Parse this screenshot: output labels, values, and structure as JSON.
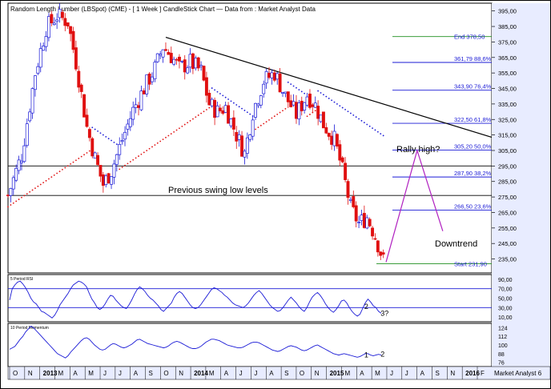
{
  "title": "Random Length Lumber (LBSpot) (CME) -  [ 1 Week ] CandleStick Chart — Data from : Market Analyst Data",
  "watermark": "Market Analyst 6",
  "colors": {
    "up_candle": "#1a1ad6",
    "down_candle": "#e01010",
    "sar_up": "#e01010",
    "sar_down": "#1a1ad6",
    "fib_line": "#1a1ad6",
    "start_end_line": "#1f8f1f",
    "trendline": "#000000",
    "projection": "#b020c0",
    "indicator_line": "#1a1ad6",
    "axis_bg": "#e8ecff"
  },
  "chart_data": [
    {
      "type": "candlestick",
      "panel": "price",
      "title": "Random Length Lumber (LBSpot) (CME) -  [ 1 Week ] CandleStick Chart — Data from : Market Analyst Data",
      "ylim": [
        226,
        400
      ],
      "y_ticks": [
        "395,00",
        "385,00",
        "375,00",
        "365,00",
        "355,00",
        "345,00",
        "335,00",
        "325,00",
        "315,00",
        "305,00",
        "295,00",
        "285,00",
        "275,00",
        "265,00",
        "255,00",
        "245,00",
        "235,00"
      ],
      "x_labels": [
        "O",
        "N",
        "2013",
        "M",
        "A",
        "M",
        "J",
        "J",
        "A",
        "S",
        "O",
        "N",
        "2014",
        "M",
        "A",
        "J",
        "J",
        "A",
        "S",
        "O",
        "N",
        "2015",
        "M",
        "A",
        "M",
        "J",
        "J",
        "A",
        "S",
        "N",
        "2016",
        "F"
      ],
      "x_range": [
        "2012-10",
        "2016-02"
      ],
      "path_keypoints": [
        {
          "date": "2012-10-01",
          "close": 276
        },
        {
          "date": "2012-11-05",
          "close": 302
        },
        {
          "date": "2012-12-10",
          "close": 355
        },
        {
          "date": "2013-01-07",
          "close": 384
        },
        {
          "date": "2013-02-04",
          "close": 392
        },
        {
          "date": "2013-03-04",
          "close": 388
        },
        {
          "date": "2013-03-25",
          "close": 362
        },
        {
          "date": "2013-04-22",
          "close": 320
        },
        {
          "date": "2013-05-13",
          "close": 300
        },
        {
          "date": "2013-06-03",
          "close": 283
        },
        {
          "date": "2013-06-24",
          "close": 292
        },
        {
          "date": "2013-07-22",
          "close": 312
        },
        {
          "date": "2013-08-19",
          "close": 331
        },
        {
          "date": "2013-09-16",
          "close": 345
        },
        {
          "date": "2013-10-14",
          "close": 358
        },
        {
          "date": "2013-11-04",
          "close": 372
        },
        {
          "date": "2013-11-25",
          "close": 366
        },
        {
          "date": "2013-12-16",
          "close": 358
        },
        {
          "date": "2014-01-13",
          "close": 362
        },
        {
          "date": "2014-02-10",
          "close": 356
        },
        {
          "date": "2014-03-03",
          "close": 335
        },
        {
          "date": "2014-03-24",
          "close": 330
        },
        {
          "date": "2014-04-14",
          "close": 333
        },
        {
          "date": "2014-05-12",
          "close": 315
        },
        {
          "date": "2014-06-02",
          "close": 303
        },
        {
          "date": "2014-06-23",
          "close": 330
        },
        {
          "date": "2014-07-21",
          "close": 350
        },
        {
          "date": "2014-08-18",
          "close": 355
        },
        {
          "date": "2014-09-15",
          "close": 340
        },
        {
          "date": "2014-10-13",
          "close": 328
        },
        {
          "date": "2014-11-10",
          "close": 341
        },
        {
          "date": "2014-12-01",
          "close": 334
        },
        {
          "date": "2014-12-22",
          "close": 322
        },
        {
          "date": "2015-01-19",
          "close": 312
        },
        {
          "date": "2015-02-09",
          "close": 292
        },
        {
          "date": "2015-03-02",
          "close": 268
        },
        {
          "date": "2015-03-23",
          "close": 258
        },
        {
          "date": "2015-04-13",
          "close": 262
        },
        {
          "date": "2015-05-04",
          "close": 250
        },
        {
          "date": "2015-05-25",
          "close": 234
        }
      ],
      "annotations": {
        "start": {
          "label": "Start 231,90",
          "price": 231.9
        },
        "end": {
          "label": "End 378,50",
          "price": 378.5
        },
        "fib_levels": [
          {
            "label": "361,79 88,6%",
            "price": 361.79
          },
          {
            "label": "343,90 76,4%",
            "price": 343.9
          },
          {
            "label": "322,50 61,8%",
            "price": 322.5
          },
          {
            "label": "305,20 50,0%",
            "price": 305.2
          },
          {
            "label": "287,90 38,2%",
            "price": 287.9
          },
          {
            "label": "266,50 23,6%",
            "price": 266.5
          }
        ],
        "swing_low_levels": [
          295,
          276
        ],
        "swing_low_label": "Previous swing low levels",
        "trendline": [
          {
            "date": "2013-11-11",
            "price": 378
          },
          {
            "date": "2016-02-20",
            "price": 304
          }
        ],
        "rally_label": "Rally high?",
        "downtrend_label": "Downtrend",
        "projection": [
          {
            "date": "2015-06-01",
            "price": 233
          },
          {
            "date": "2015-08-20",
            "price": 305
          },
          {
            "date": "2015-10-25",
            "price": 253
          }
        ]
      }
    },
    {
      "type": "line",
      "panel": "rsi",
      "title": "5 Period RSI",
      "y_ticks": [
        "90,00",
        "70,00",
        "50,00",
        "30,00",
        "10,00"
      ],
      "ylim": [
        0,
        100
      ],
      "reference_lines": [
        70,
        30
      ],
      "annotations": [
        {
          "label": "2",
          "date": "2015-04-06",
          "value": 32
        },
        {
          "label": "3?",
          "date": "2015-05-18",
          "value": 18
        }
      ],
      "values": [
        46,
        70,
        78,
        84,
        86,
        80,
        72,
        62,
        50,
        42,
        38,
        30,
        22,
        20,
        16,
        12,
        8,
        14,
        24,
        36,
        44,
        52,
        60,
        70,
        78,
        82,
        86,
        84,
        80,
        74,
        60,
        48,
        40,
        30,
        26,
        30,
        38,
        48,
        56,
        54,
        46,
        40,
        34,
        30,
        28,
        36,
        46,
        58,
        68,
        74,
        70,
        64,
        56,
        50,
        46,
        40,
        34,
        26,
        22,
        28,
        34,
        40,
        52,
        60,
        64,
        60,
        52,
        44,
        36,
        30,
        28,
        30,
        36,
        44,
        52,
        60,
        68,
        72,
        70,
        66,
        62,
        56,
        52,
        46,
        40,
        36,
        34,
        32,
        30,
        34,
        40,
        48,
        56,
        62,
        66,
        60,
        52,
        44,
        36,
        30,
        26,
        22,
        24,
        30,
        38,
        46,
        52,
        46,
        40,
        32,
        26,
        22,
        30,
        42,
        52,
        58,
        62,
        56,
        48,
        38,
        30,
        24,
        20,
        26,
        34,
        44,
        46,
        40,
        30,
        22,
        16,
        12,
        16,
        28,
        40,
        48,
        42,
        34,
        30,
        22,
        18
      ]
    },
    {
      "type": "line",
      "panel": "momentum",
      "title": "10 Period Momentum",
      "y_ticks": [
        "124",
        "112",
        "100",
        "88",
        "76"
      ],
      "ylim": [
        70,
        130
      ],
      "annotations": [
        {
          "label": "1",
          "date": "2015-04-06",
          "value": 86
        },
        {
          "label": "2",
          "date": "2015-05-18",
          "value": 87
        }
      ],
      "values": [
        94,
        96,
        98,
        103,
        108,
        112,
        118,
        122,
        126,
        124,
        120,
        116,
        112,
        108,
        104,
        100,
        96,
        92,
        88,
        86,
        84,
        82,
        85,
        90,
        94,
        98,
        102,
        106,
        109,
        110,
        108,
        104,
        100,
        97,
        94,
        93,
        94,
        97,
        100,
        102,
        101,
        99,
        97,
        96,
        97,
        99,
        101,
        104,
        107,
        108,
        106,
        104,
        102,
        101,
        100,
        99,
        98,
        97,
        96,
        97,
        99,
        102,
        104,
        105,
        104,
        102,
        100,
        98,
        96,
        95,
        95,
        96,
        98,
        101,
        104,
        106,
        108,
        108,
        107,
        106,
        104,
        102,
        100,
        99,
        98,
        97,
        96,
        96,
        97,
        99,
        101,
        103,
        104,
        104,
        103,
        101,
        99,
        97,
        95,
        93,
        92,
        91,
        92,
        94,
        96,
        98,
        99,
        98,
        97,
        95,
        93,
        92,
        93,
        95,
        97,
        99,
        100,
        98,
        96,
        94,
        92,
        90,
        88,
        87,
        86,
        87,
        88,
        87,
        86,
        85,
        84,
        83,
        84,
        86,
        88,
        88,
        86,
        85,
        86,
        87,
        86
      ]
    }
  ]
}
